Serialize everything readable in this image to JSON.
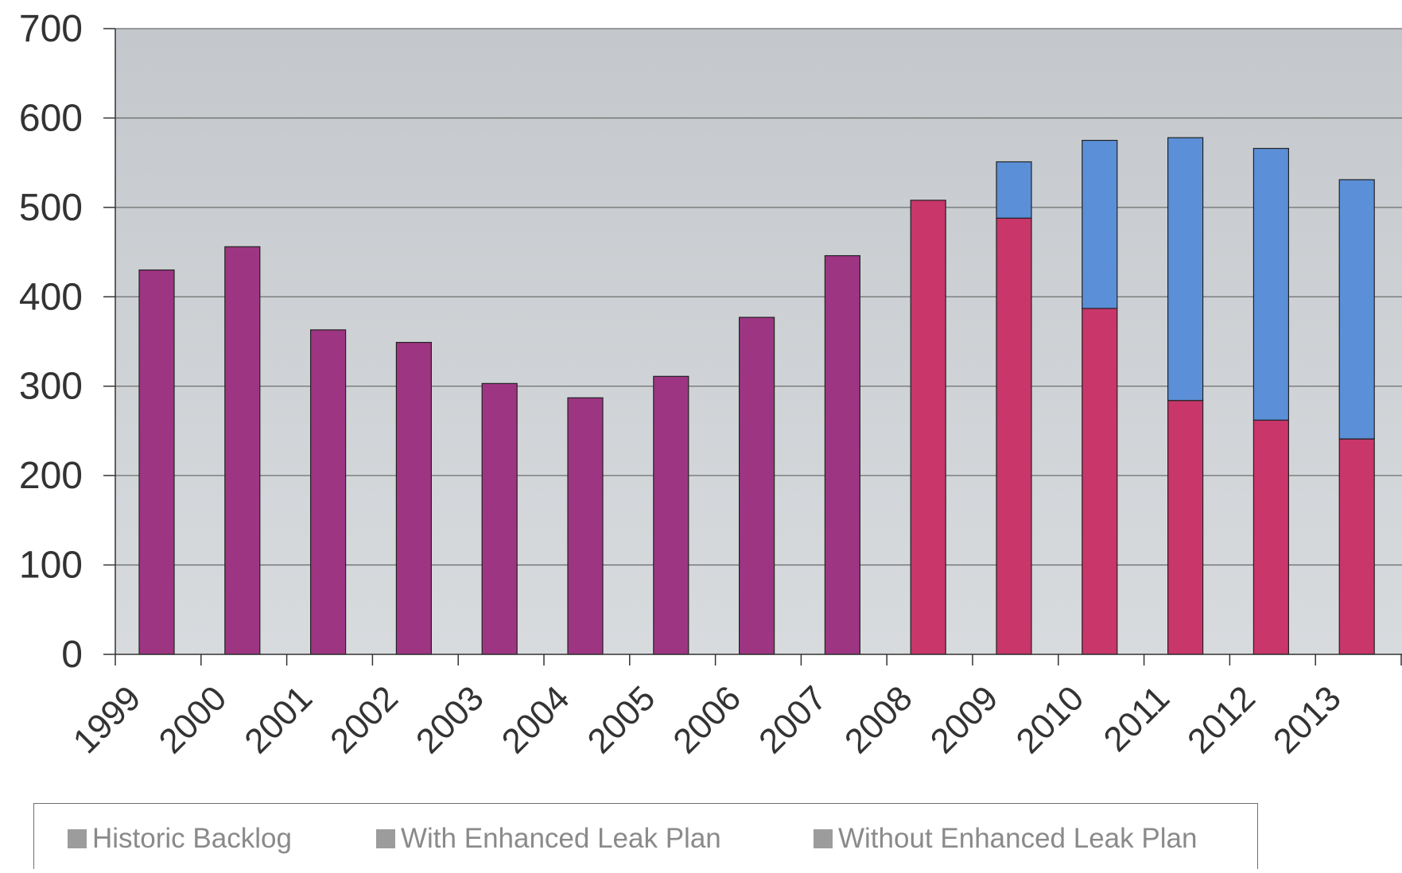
{
  "chart_data": {
    "type": "bar",
    "stacked": true,
    "categories": [
      "1999",
      "2000",
      "2001",
      "2002",
      "2003",
      "2004",
      "2005",
      "2006",
      "2007",
      "2008",
      "2009",
      "2010",
      "2011",
      "2012",
      "2013"
    ],
    "series": [
      {
        "name": "Historic Backlog",
        "color": "#9e3583",
        "values": [
          430,
          456,
          363,
          349,
          303,
          287,
          311,
          377,
          446,
          null,
          null,
          null,
          null,
          null,
          null
        ]
      },
      {
        "name": "Without Enhanced Leak Plan",
        "color": "#c8366a",
        "values": [
          null,
          null,
          null,
          null,
          null,
          null,
          null,
          null,
          null,
          508,
          488,
          387,
          284,
          262,
          241
        ]
      },
      {
        "name": "With Enhanced Leak Plan",
        "color": "#5b8fd7",
        "values": [
          null,
          null,
          null,
          null,
          null,
          null,
          null,
          null,
          null,
          null,
          63,
          188,
          294,
          304,
          290
        ]
      }
    ],
    "ylim": [
      0,
      700
    ],
    "yticks": [
      "0",
      "100",
      "200",
      "300",
      "400",
      "500",
      "600",
      "700"
    ],
    "grid": true,
    "legend_position": "bottom",
    "legend_entries": [
      "Historic Backlog",
      "With Enhanced Leak Plan",
      "Without Enhanced Leak Plan"
    ]
  }
}
